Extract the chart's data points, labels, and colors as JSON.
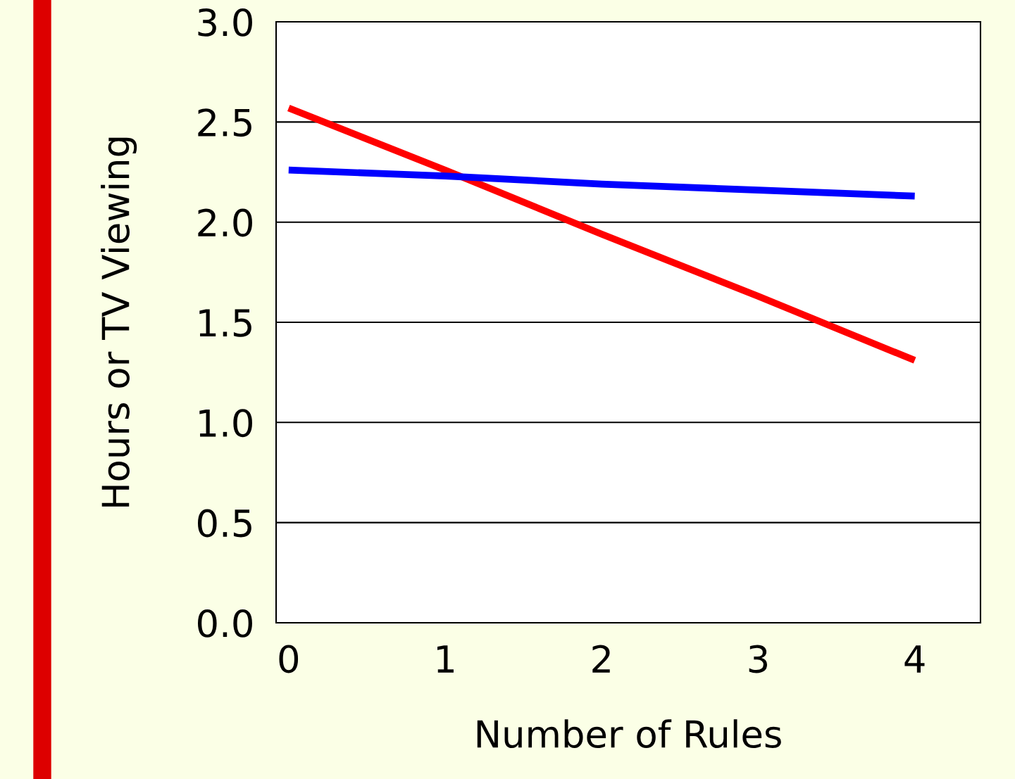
{
  "chart_data": {
    "type": "line",
    "xlabel": "Number of Rules",
    "ylabel": "Hours or TV Viewing",
    "x": [
      0,
      1,
      2,
      3,
      4
    ],
    "series": [
      {
        "color": "#ff0000",
        "values": [
          2.57,
          2.26,
          1.94,
          1.63,
          1.31
        ]
      },
      {
        "color": "#0000ff",
        "values": [
          2.26,
          2.23,
          2.19,
          2.16,
          2.13
        ]
      }
    ],
    "xlim": [
      -0.08,
      4.42
    ],
    "xticks": [
      0,
      1,
      2,
      3,
      4
    ],
    "ylim": [
      0,
      3
    ],
    "yticks": [
      {
        "value": 0,
        "label": "0.0"
      },
      {
        "value": 0.5,
        "label": "0.5"
      },
      {
        "value": 1,
        "label": "1.0"
      },
      {
        "value": 1.5,
        "label": "1.5"
      },
      {
        "value": 2,
        "label": "2.0"
      },
      {
        "value": 2.5,
        "label": "2.5"
      },
      {
        "value": 3,
        "label": "3.0"
      }
    ],
    "grid": "y",
    "marker": "none",
    "line_style": "solid"
  }
}
